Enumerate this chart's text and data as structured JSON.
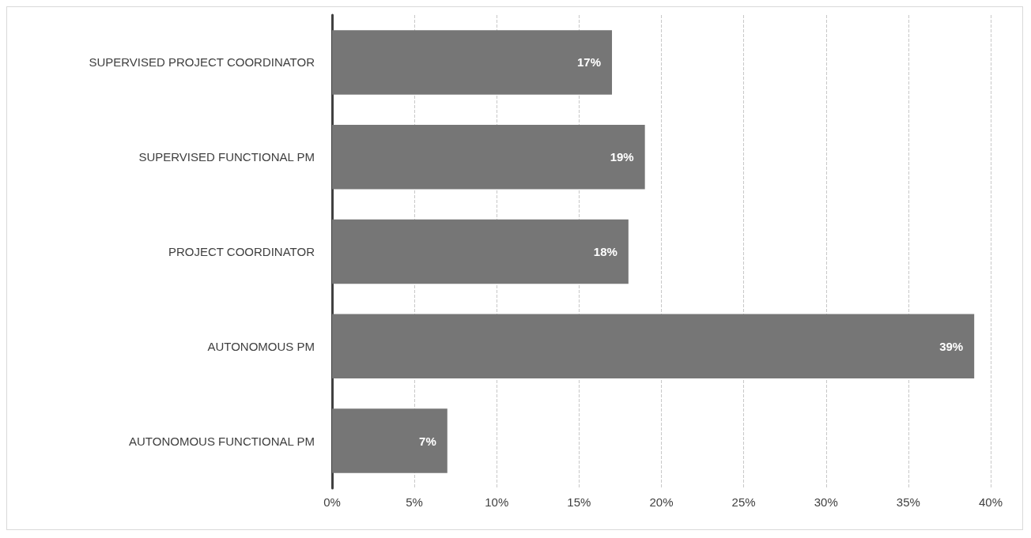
{
  "chart_data": {
    "type": "bar",
    "orientation": "horizontal",
    "categories": [
      "SUPERVISED PROJECT COORDINATOR",
      "SUPERVISED FUNCTIONAL PM",
      "PROJECT COORDINATOR",
      "AUTONOMOUS PM",
      "AUTONOMOUS FUNCTIONAL PM"
    ],
    "values": [
      17,
      19,
      18,
      39,
      7
    ],
    "color": "#767676",
    "value_labels": [
      "17%",
      "19%",
      "18%",
      "39%",
      "7%"
    ],
    "xlim": [
      0,
      40
    ],
    "xticks": [
      {
        "value": 0,
        "label": "0%"
      },
      {
        "value": 5,
        "label": "5%"
      },
      {
        "value": 10,
        "label": "10%"
      },
      {
        "value": 15,
        "label": "15%"
      },
      {
        "value": 20,
        "label": "20%"
      },
      {
        "value": 25,
        "label": "25%"
      },
      {
        "value": 30,
        "label": "30%"
      },
      {
        "value": 35,
        "label": "35%"
      },
      {
        "value": 40,
        "label": "40%"
      }
    ],
    "grid": "x"
  }
}
